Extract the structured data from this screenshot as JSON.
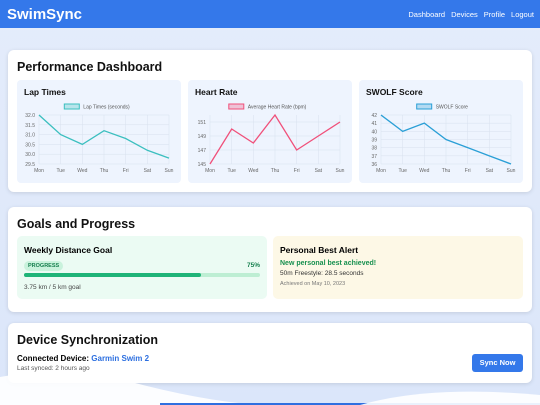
{
  "header": {
    "title": "SwimSync",
    "nav": [
      "Dashboard",
      "Devices",
      "Profile",
      "Logout"
    ]
  },
  "performance": {
    "title": "Performance Dashboard"
  },
  "chart_data": [
    {
      "type": "line",
      "title": "Lap Times",
      "categories": [
        "Mon",
        "Tue",
        "Wed",
        "Thu",
        "Fri",
        "Sat",
        "Sun"
      ],
      "series": [
        {
          "name": "Lap Times (seconds)",
          "color": "#3bbfbf",
          "values": [
            32.0,
            31.0,
            30.5,
            31.2,
            30.8,
            30.2,
            29.8
          ]
        }
      ],
      "ylim": [
        29.5,
        32.0
      ],
      "yticks": [
        29.5,
        {
          "value": 30,
          "label": "30.0"
        },
        30.5,
        {
          "value": 31,
          "label": "31.0"
        },
        31.5,
        {
          "value": 32,
          "label": "32.0"
        }
      ],
      "grid": true
    },
    {
      "type": "line",
      "title": "Heart Rate",
      "categories": [
        "Mon",
        "Tue",
        "Wed",
        "Thu",
        "Fri",
        "Sat",
        "Sun"
      ],
      "series": [
        {
          "name": "Average Heart Rate (bpm)",
          "color": "#f0507a",
          "values": [
            145,
            150,
            148,
            152,
            147,
            149,
            151
          ]
        }
      ],
      "ylim": [
        145,
        152
      ],
      "yticks": [
        145,
        147,
        149,
        151
      ],
      "grid": true
    },
    {
      "type": "line",
      "title": "SWOLF Score",
      "categories": [
        "Mon",
        "Tue",
        "Wed",
        "Thu",
        "Fri",
        "Sat",
        "Sun"
      ],
      "series": [
        {
          "name": "SWOLF Score",
          "color": "#2a9fd6",
          "values": [
            42,
            40,
            41,
            39,
            38,
            37,
            36
          ]
        }
      ],
      "ylim": [
        36,
        42
      ],
      "yticks": [
        36,
        37,
        38,
        39,
        40,
        41,
        42
      ],
      "grid": true
    }
  ],
  "goals": {
    "title": "Goals and Progress",
    "weekly": {
      "title": "Weekly Distance Goal",
      "badge": "PROGRESS",
      "progress": {
        "value": 75,
        "label": "75%"
      },
      "max": 100,
      "detail": "3.75 km / 5 km goal"
    },
    "best": {
      "title": "Personal Best Alert",
      "headline": "New personal best achieved!",
      "detail": "50m Freestyle: 28.5 seconds",
      "date": "Achieved on May 10, 2023"
    }
  },
  "device": {
    "title": "Device Synchronization",
    "label": "Connected Device:",
    "name": "Garmin Swim 2",
    "synced": "Last synced: 2 hours ago",
    "button": "Sync Now"
  }
}
